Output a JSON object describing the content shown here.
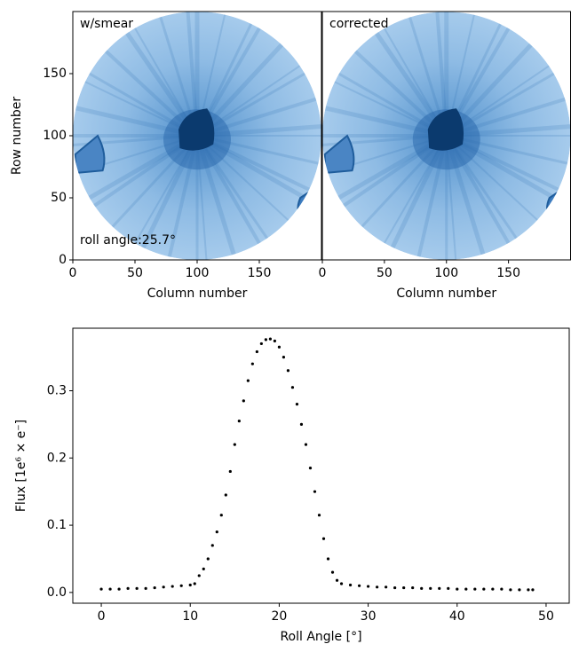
{
  "chart_data": [
    {
      "type": "image",
      "annotation": "w/smear",
      "note": "roll angle:25.7°",
      "xlabel": "Column number",
      "ylabel": "Row number",
      "xlim": [
        0,
        200
      ],
      "ylim": [
        0,
        200
      ],
      "xticks": [
        0,
        50,
        100,
        150
      ],
      "yticks": [
        0,
        50,
        100,
        150
      ]
    },
    {
      "type": "image",
      "annotation": "corrected",
      "xlabel": "Column number",
      "xlim": [
        0,
        200
      ],
      "ylim": [
        0,
        200
      ],
      "xticks": [
        0,
        50,
        100,
        150
      ]
    },
    {
      "type": "scatter",
      "xlabel": "Roll Angle [°]",
      "ylabel": "Flux [1e⁶ × e⁻]",
      "color": "#000000",
      "xlim": [
        -3.2,
        52.6
      ],
      "ylim": [
        -0.016,
        0.393
      ],
      "xticks": [
        0,
        10,
        20,
        30,
        40,
        50
      ],
      "yticks": [
        {
          "value": 0,
          "label": "0.0"
        },
        0.1,
        0.2,
        0.3
      ],
      "x": [
        0,
        1,
        2,
        3,
        4,
        5,
        6,
        7,
        8,
        9,
        10,
        10.5,
        11,
        11.5,
        12,
        12.5,
        13,
        13.5,
        14,
        14.5,
        15,
        15.5,
        16,
        16.5,
        17,
        17.5,
        18,
        18.5,
        19,
        19.5,
        20,
        20.5,
        21,
        21.5,
        22,
        22.5,
        23,
        23.5,
        24,
        24.5,
        25,
        25.5,
        26,
        26.5,
        27,
        28,
        29,
        30,
        31,
        32,
        33,
        34,
        35,
        36,
        37,
        38,
        39,
        40,
        41,
        42,
        43,
        44,
        45,
        46,
        47,
        48,
        48.5
      ],
      "y": [
        0.005,
        0.005,
        0.005,
        0.006,
        0.006,
        0.006,
        0.007,
        0.008,
        0.009,
        0.01,
        0.011,
        0.013,
        0.025,
        0.035,
        0.05,
        0.07,
        0.09,
        0.115,
        0.145,
        0.18,
        0.22,
        0.255,
        0.285,
        0.315,
        0.34,
        0.358,
        0.37,
        0.376,
        0.377,
        0.374,
        0.365,
        0.35,
        0.33,
        0.305,
        0.28,
        0.25,
        0.22,
        0.185,
        0.15,
        0.115,
        0.08,
        0.05,
        0.03,
        0.018,
        0.013,
        0.011,
        0.01,
        0.009,
        0.008,
        0.008,
        0.007,
        0.007,
        0.007,
        0.006,
        0.006,
        0.006,
        0.006,
        0.005,
        0.005,
        0.005,
        0.005,
        0.005,
        0.005,
        0.004,
        0.004,
        0.004,
        0.004
      ]
    }
  ]
}
